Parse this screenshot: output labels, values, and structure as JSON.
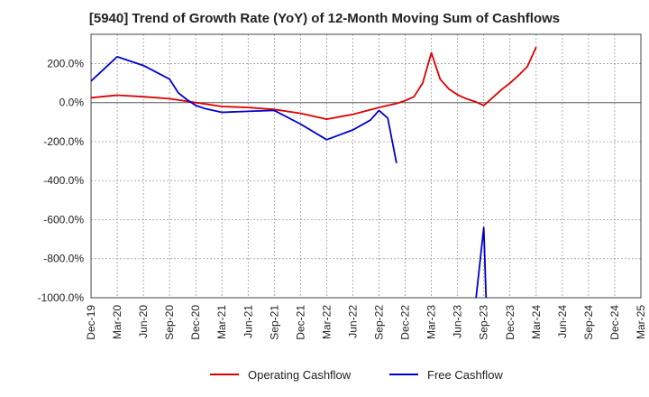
{
  "chart_data": {
    "type": "line",
    "title": "[5940]  Trend of Growth Rate (YoY) of 12-Month Moving Sum of Cashflows",
    "xlabel": "",
    "ylabel": "",
    "ylim": [
      -1000,
      350
    ],
    "yticks": [
      {
        "value": 200,
        "label": "200.0%"
      },
      {
        "value": 0,
        "label": "0.0%"
      },
      {
        "value": -200,
        "label": "-200.0%"
      },
      {
        "value": -400,
        "label": "-400.0%"
      },
      {
        "value": -600,
        "label": "-600.0%"
      },
      {
        "value": -800,
        "label": "-800.0%"
      },
      {
        "value": -1000,
        "label": "-1000.0%"
      }
    ],
    "x_range": [
      "2019-12",
      "2025-03"
    ],
    "xticks": [
      "Dec-19",
      "Mar-20",
      "Jun-20",
      "Sep-20",
      "Dec-20",
      "Mar-21",
      "Jun-21",
      "Sep-21",
      "Dec-21",
      "Mar-22",
      "Jun-22",
      "Sep-22",
      "Dec-22",
      "Mar-23",
      "Jun-23",
      "Sep-23",
      "Dec-23",
      "Mar-24",
      "Jun-24",
      "Sep-24",
      "Dec-24",
      "Mar-25"
    ],
    "grid": true,
    "legend_position": "bottom",
    "series": [
      {
        "name": "Operating Cashflow",
        "color": "#dd0000",
        "points": [
          [
            "2019-12",
            25
          ],
          [
            "2020-03",
            38
          ],
          [
            "2020-06",
            30
          ],
          [
            "2020-09",
            20
          ],
          [
            "2020-12",
            0
          ],
          [
            "2021-03",
            -20
          ],
          [
            "2021-06",
            -25
          ],
          [
            "2021-09",
            -35
          ],
          [
            "2021-12",
            -55
          ],
          [
            "2022-03",
            -85
          ],
          [
            "2022-06",
            -60
          ],
          [
            "2022-09",
            -25
          ],
          [
            "2022-10",
            -15
          ],
          [
            "2022-11",
            -5
          ],
          [
            "2022-12",
            10
          ],
          [
            "2023-01",
            30
          ],
          [
            "2023-02",
            100
          ],
          [
            "2023-03",
            255
          ],
          [
            "2023-04",
            120
          ],
          [
            "2023-05",
            70
          ],
          [
            "2023-06",
            40
          ],
          [
            "2023-07",
            20
          ],
          [
            "2023-08",
            5
          ],
          [
            "2023-09",
            -15
          ],
          [
            "2023-10",
            25
          ],
          [
            "2023-11",
            65
          ],
          [
            "2023-12",
            100
          ],
          [
            "2024-01",
            140
          ],
          [
            "2024-02",
            185
          ],
          [
            "2024-03",
            285
          ]
        ]
      },
      {
        "name": "Free Cashflow",
        "color": "#0000cc",
        "points": [
          [
            "2019-12",
            110
          ],
          [
            "2020-03",
            235
          ],
          [
            "2020-06",
            190
          ],
          [
            "2020-09",
            120
          ],
          [
            "2020-10",
            50
          ],
          [
            "2020-11",
            15
          ],
          [
            "2020-12",
            -15
          ],
          [
            "2021-01",
            -30
          ],
          [
            "2021-03",
            -50
          ],
          [
            "2021-06",
            -45
          ],
          [
            "2021-09",
            -40
          ],
          [
            "2021-12",
            -110
          ],
          [
            "2022-03",
            -190
          ],
          [
            "2022-06",
            -140
          ],
          [
            "2022-08",
            -90
          ],
          [
            "2022-09",
            -40
          ],
          [
            "2022-10",
            -80
          ],
          [
            "2022-11",
            -310
          ],
          null,
          [
            "2023-08",
            -1050
          ],
          [
            "2023-09",
            -640
          ],
          [
            "2023-09.3",
            -1050
          ]
        ]
      }
    ]
  }
}
